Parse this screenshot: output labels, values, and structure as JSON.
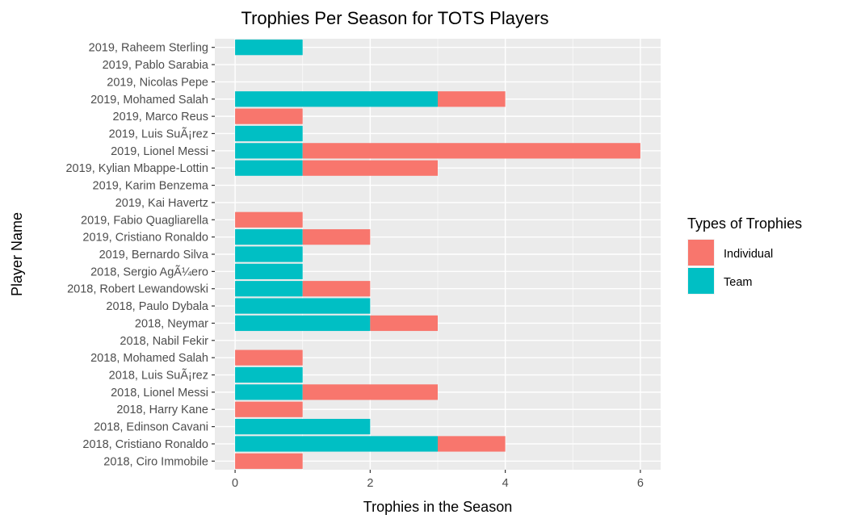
{
  "chart_data": {
    "type": "bar",
    "orientation": "horizontal",
    "stacked": true,
    "title": "Trophies Per Season for TOTS Players",
    "xlabel": "Trophies in the Season",
    "ylabel": "Player Name",
    "xlim": [
      -0.3,
      6.3
    ],
    "xticks": [
      0,
      2,
      4,
      6
    ],
    "grid": true,
    "legend": {
      "title": "Types of Trophies",
      "placement": "right",
      "entries": [
        {
          "name": "Individual",
          "color": "#F8766D"
        },
        {
          "name": "Team",
          "color": "#00BFC4"
        }
      ]
    },
    "categories": [
      "2019, Raheem Sterling",
      "2019, Pablo Sarabia",
      "2019, Nicolas Pepe",
      "2019, Mohamed Salah",
      "2019, Marco Reus",
      "2019, Luis SuÃ¡rez",
      "2019, Lionel Messi",
      "2019, Kylian Mbappe-Lottin",
      "2019, Karim Benzema",
      "2019, Kai Havertz",
      "2019, Fabio Quagliarella",
      "2019, Cristiano Ronaldo",
      "2019, Bernardo Silva",
      "2018, Sergio AgÃ¼ero",
      "2018, Robert Lewandowski",
      "2018, Paulo Dybala",
      "2018, Neymar",
      "2018, Nabil Fekir",
      "2018, Mohamed Salah",
      "2018, Luis SuÃ¡rez",
      "2018, Lionel Messi",
      "2018, Harry Kane",
      "2018, Edinson Cavani",
      "2018, Cristiano Ronaldo",
      "2018, Ciro Immobile"
    ],
    "series": [
      {
        "name": "Team",
        "color": "#00BFC4",
        "values": [
          1,
          0,
          0,
          3,
          0,
          1,
          1,
          1,
          0,
          0,
          0,
          1,
          1,
          1,
          1,
          2,
          2,
          0,
          0,
          1,
          1,
          0,
          2,
          3,
          0
        ]
      },
      {
        "name": "Individual",
        "color": "#F8766D",
        "values": [
          0,
          0,
          0,
          1,
          1,
          0,
          5,
          2,
          0,
          0,
          1,
          1,
          0,
          0,
          1,
          0,
          1,
          0,
          1,
          0,
          2,
          1,
          0,
          1,
          1
        ]
      }
    ]
  }
}
